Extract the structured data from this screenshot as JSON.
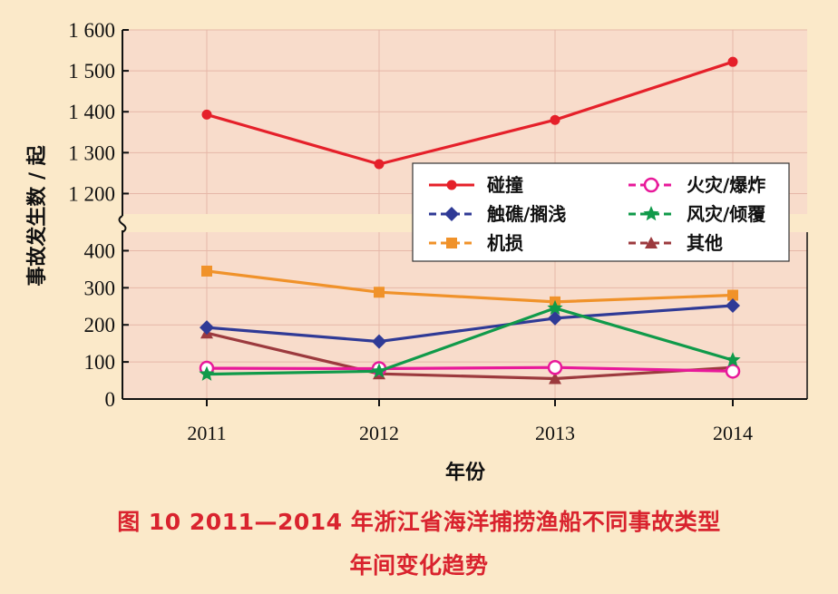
{
  "chart_data": {
    "type": "line",
    "xlabel": "年份",
    "ylabel": "事故发生数 / 起",
    "categories": [
      "2011",
      "2012",
      "2013",
      "2014"
    ],
    "y_ticks_upper": [
      "1 600",
      "1 500",
      "1 400",
      "1 300",
      "1 200"
    ],
    "y_ticks_lower": [
      "400",
      "300",
      "200",
      "100",
      "0"
    ],
    "ylim_upper": [
      1150,
      1600
    ],
    "ylim_lower": [
      0,
      450
    ],
    "axis_break": true,
    "grid": true,
    "legend_placement": "center-right",
    "series": [
      {
        "name": "碰撞",
        "values": [
          1393,
          1272,
          1380,
          1522
        ],
        "color": "#e5202a",
        "marker": "circle"
      },
      {
        "name": "触礁/搁浅",
        "values": [
          193,
          155,
          218,
          252
        ],
        "color": "#2f3a96",
        "marker": "diamond"
      },
      {
        "name": "机损",
        "values": [
          345,
          288,
          262,
          280
        ],
        "color": "#f0922a",
        "marker": "square"
      },
      {
        "name": "火灾/爆炸",
        "values": [
          83,
          82,
          85,
          75
        ],
        "color": "#e8199a",
        "marker": "open-circle"
      },
      {
        "name": "风灾/倾覆",
        "values": [
          67,
          75,
          245,
          105
        ],
        "color": "#109a4a",
        "marker": "star"
      },
      {
        "name": "其他",
        "values": [
          178,
          68,
          55,
          85
        ],
        "color": "#9c3a3e",
        "marker": "triangle"
      }
    ]
  },
  "caption": {
    "line1": "图 10   2011—2014 年浙江省海洋捕捞渔船不同事故类型",
    "line2": "年间变化趋势"
  }
}
